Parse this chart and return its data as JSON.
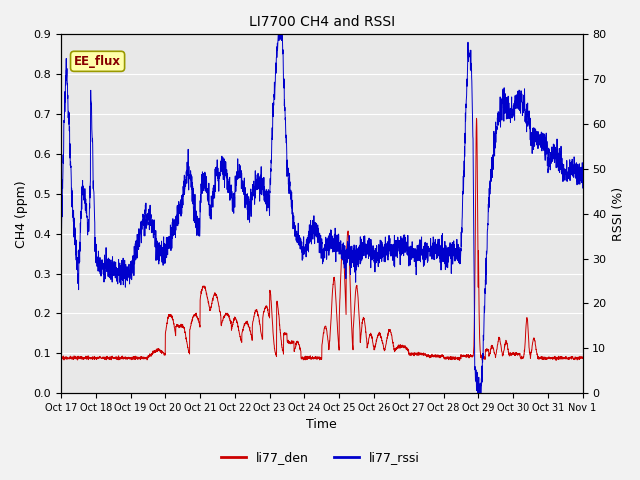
{
  "title": "LI7700 CH4 and RSSI",
  "xlabel": "Time",
  "ylabel_left": "CH4 (ppm)",
  "ylabel_right": "RSSI (%)",
  "ylim_left": [
    0.0,
    0.9
  ],
  "ylim_right": [
    0,
    80
  ],
  "yticks_left": [
    0.0,
    0.1,
    0.2,
    0.3,
    0.4,
    0.5,
    0.6,
    0.7,
    0.8,
    0.9
  ],
  "yticks_right": [
    0,
    10,
    20,
    30,
    40,
    50,
    60,
    70,
    80
  ],
  "bg_color": "#f2f2f2",
  "plot_bg_color": "#e8e8e8",
  "line_color_den": "#cc0000",
  "line_color_rssi": "#0000cc",
  "legend_label_den": "li77_den",
  "legend_label_rssi": "li77_rssi",
  "annotation_text": "EE_flux",
  "annotation_box_color": "#ffffaa",
  "annotation_box_edge": "#999900",
  "grid_color": "#ffffff",
  "tick_label_size": 7,
  "title_fontsize": 10,
  "axis_label_fontsize": 9
}
